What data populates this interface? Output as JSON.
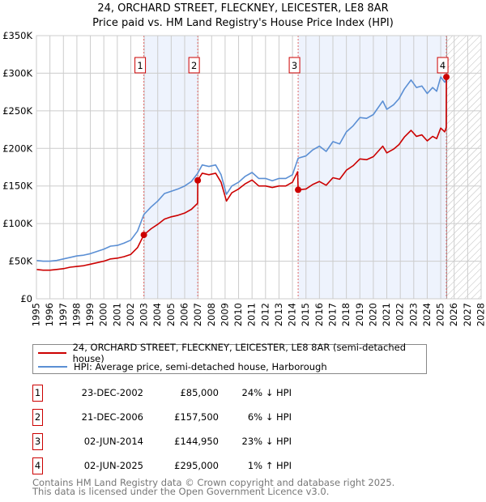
{
  "title_line1": "24, ORCHARD STREET, FLECKNEY, LEICESTER, LE8 8AR",
  "title_line2": "Price paid vs. HM Land Registry's House Price Index (HPI)",
  "chart_data": {
    "type": "line",
    "title": "24, ORCHARD STREET, FLECKNEY, LEICESTER, LE8 8AR — Price paid vs. HM Land Registry's House Price Index (HPI)",
    "xlim": [
      1995,
      2028
    ],
    "ylim": [
      0,
      350000
    ],
    "grid": true,
    "x_ticks": [
      "1995",
      "1996",
      "1997",
      "1998",
      "1999",
      "2000",
      "2001",
      "2002",
      "2003",
      "2004",
      "2005",
      "2006",
      "2007",
      "2008",
      "2009",
      "2010",
      "2011",
      "2012",
      "2013",
      "2014",
      "2015",
      "2016",
      "2017",
      "2018",
      "2019",
      "2020",
      "2021",
      "2022",
      "2023",
      "2024",
      "2025",
      "2026",
      "2027",
      "2028"
    ],
    "y_ticks": [
      {
        "v": 0,
        "label": "£0"
      },
      {
        "v": 50000,
        "label": "£50K"
      },
      {
        "v": 100000,
        "label": "£100K"
      },
      {
        "v": 150000,
        "label": "£150K"
      },
      {
        "v": 200000,
        "label": "£200K"
      },
      {
        "v": 250000,
        "label": "£250K"
      },
      {
        "v": 300000,
        "label": "£300K"
      },
      {
        "v": 350000,
        "label": "£350K"
      }
    ],
    "data_end_year": 2025.45,
    "colors": {
      "property": "#cc0000",
      "hpi": "#5b8fd4",
      "shade": "#eef3fd"
    },
    "series": [
      {
        "name": "24, ORCHARD STREET, FLECKNEY, LEICESTER, LE8 8AR (semi-detached house)",
        "key": "property",
        "points": [
          [
            1995,
            39000
          ],
          [
            1995.5,
            38000
          ],
          [
            1996,
            38000
          ],
          [
            1996.5,
            39000
          ],
          [
            1997,
            40000
          ],
          [
            1997.5,
            42000
          ],
          [
            1998,
            43000
          ],
          [
            1998.5,
            44000
          ],
          [
            1999,
            46000
          ],
          [
            1999.5,
            48000
          ],
          [
            2000,
            50000
          ],
          [
            2000.5,
            53000
          ],
          [
            2001,
            54000
          ],
          [
            2001.5,
            56000
          ],
          [
            2002,
            59000
          ],
          [
            2002.5,
            68000
          ],
          [
            2002.97,
            85000
          ],
          [
            2003.5,
            93000
          ],
          [
            2004,
            99000
          ],
          [
            2004.5,
            106000
          ],
          [
            2005,
            109000
          ],
          [
            2005.5,
            111000
          ],
          [
            2006,
            114000
          ],
          [
            2006.5,
            119000
          ],
          [
            2006.96,
            127000
          ],
          [
            2006.97,
            157500
          ],
          [
            2007.3,
            167000
          ],
          [
            2007.8,
            165000
          ],
          [
            2008.3,
            167000
          ],
          [
            2008.7,
            155000
          ],
          [
            2009.1,
            130000
          ],
          [
            2009.5,
            141000
          ],
          [
            2010,
            146000
          ],
          [
            2010.5,
            153000
          ],
          [
            2011,
            158000
          ],
          [
            2011.5,
            150000
          ],
          [
            2012,
            150000
          ],
          [
            2012.5,
            148000
          ],
          [
            2013,
            150000
          ],
          [
            2013.5,
            150000
          ],
          [
            2014,
            155000
          ],
          [
            2014.38,
            169000
          ],
          [
            2014.42,
            144950
          ],
          [
            2015,
            146000
          ],
          [
            2015.5,
            152000
          ],
          [
            2016,
            156000
          ],
          [
            2016.5,
            151000
          ],
          [
            2017,
            161000
          ],
          [
            2017.5,
            159000
          ],
          [
            2018,
            171000
          ],
          [
            2018.5,
            177000
          ],
          [
            2019,
            186000
          ],
          [
            2019.5,
            185000
          ],
          [
            2020,
            189000
          ],
          [
            2020.7,
            203000
          ],
          [
            2021,
            194000
          ],
          [
            2021.5,
            199000
          ],
          [
            2021.9,
            205000
          ],
          [
            2022.3,
            215000
          ],
          [
            2022.8,
            224000
          ],
          [
            2023.2,
            216000
          ],
          [
            2023.6,
            218000
          ],
          [
            2024,
            210000
          ],
          [
            2024.4,
            216000
          ],
          [
            2024.7,
            213000
          ],
          [
            2025,
            227000
          ],
          [
            2025.3,
            222000
          ],
          [
            2025.41,
            228000
          ],
          [
            2025.42,
            295000
          ]
        ]
      },
      {
        "name": "HPI: Average price, semi-detached house, Harborough",
        "key": "hpi",
        "points": [
          [
            1995,
            51000
          ],
          [
            1995.5,
            50000
          ],
          [
            1996,
            50000
          ],
          [
            1996.5,
            51000
          ],
          [
            1997,
            53000
          ],
          [
            1997.5,
            55000
          ],
          [
            1998,
            57000
          ],
          [
            1998.5,
            58000
          ],
          [
            1999,
            60000
          ],
          [
            1999.5,
            63000
          ],
          [
            2000,
            66000
          ],
          [
            2000.5,
            70000
          ],
          [
            2001,
            71000
          ],
          [
            2001.5,
            74000
          ],
          [
            2002,
            78000
          ],
          [
            2002.5,
            90000
          ],
          [
            2002.97,
            112000
          ],
          [
            2003.5,
            122000
          ],
          [
            2004,
            130000
          ],
          [
            2004.5,
            140000
          ],
          [
            2005,
            143000
          ],
          [
            2005.5,
            146000
          ],
          [
            2006,
            150000
          ],
          [
            2006.5,
            156000
          ],
          [
            2006.97,
            167000
          ],
          [
            2007.3,
            178000
          ],
          [
            2007.8,
            176000
          ],
          [
            2008.3,
            178000
          ],
          [
            2008.7,
            165000
          ],
          [
            2009.1,
            139000
          ],
          [
            2009.5,
            150000
          ],
          [
            2010,
            155000
          ],
          [
            2010.5,
            163000
          ],
          [
            2011,
            168000
          ],
          [
            2011.5,
            160000
          ],
          [
            2012,
            160000
          ],
          [
            2012.5,
            157000
          ],
          [
            2013,
            160000
          ],
          [
            2013.5,
            160000
          ],
          [
            2014,
            165000
          ],
          [
            2014.42,
            187000
          ],
          [
            2015,
            190000
          ],
          [
            2015.5,
            198000
          ],
          [
            2016,
            203000
          ],
          [
            2016.5,
            196000
          ],
          [
            2017,
            209000
          ],
          [
            2017.5,
            206000
          ],
          [
            2018,
            222000
          ],
          [
            2018.5,
            230000
          ],
          [
            2019,
            241000
          ],
          [
            2019.5,
            240000
          ],
          [
            2020,
            245000
          ],
          [
            2020.7,
            263000
          ],
          [
            2021,
            252000
          ],
          [
            2021.5,
            258000
          ],
          [
            2021.9,
            266000
          ],
          [
            2022.3,
            279000
          ],
          [
            2022.8,
            291000
          ],
          [
            2023.2,
            281000
          ],
          [
            2023.6,
            283000
          ],
          [
            2024,
            273000
          ],
          [
            2024.4,
            281000
          ],
          [
            2024.7,
            276000
          ],
          [
            2025,
            295000
          ],
          [
            2025.3,
            288000
          ],
          [
            2025.42,
            292000
          ]
        ]
      }
    ],
    "sales": [
      {
        "n": "1",
        "year": 2002.97,
        "price": 85000,
        "date": "23-DEC-2002",
        "price_label": "£85,000",
        "hpi_label": "24% ↓ HPI"
      },
      {
        "n": "2",
        "year": 2006.97,
        "price": 157500,
        "date": "21-DEC-2006",
        "price_label": "£157,500",
        "hpi_label": "6% ↓ HPI"
      },
      {
        "n": "3",
        "year": 2014.42,
        "price": 144950,
        "date": "02-JUN-2014",
        "price_label": "£144,950",
        "hpi_label": "23% ↓ HPI"
      },
      {
        "n": "4",
        "year": 2025.42,
        "price": 295000,
        "date": "02-JUN-2025",
        "price_label": "£295,000",
        "hpi_label": "1% ↑ HPI"
      }
    ],
    "shaded_periods": [
      [
        2002.97,
        2006.97
      ],
      [
        2014.42,
        2025.42
      ]
    ]
  },
  "legend": {
    "property": "24, ORCHARD STREET, FLECKNEY, LEICESTER, LE8 8AR (semi-detached house)",
    "hpi": "HPI: Average price, semi-detached house, Harborough"
  },
  "footer": {
    "line1": "Contains HM Land Registry data © Crown copyright and database right 2025.",
    "line2": "This data is licensed under the Open Government Licence v3.0."
  }
}
